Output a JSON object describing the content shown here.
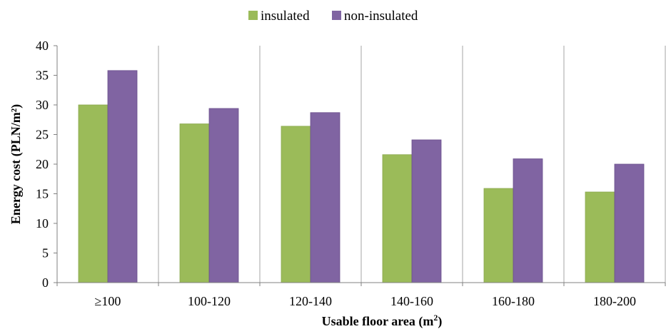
{
  "chart_data": {
    "type": "bar",
    "categories": [
      "≥100",
      "100-120",
      "120-140",
      "140-160",
      "160-180",
      "180-200"
    ],
    "series": [
      {
        "name": "insulated",
        "values": [
          30.0,
          26.8,
          26.4,
          21.6,
          15.9,
          15.3
        ]
      },
      {
        "name": "non-insulated",
        "values": [
          35.8,
          29.4,
          28.7,
          24.1,
          20.9,
          20.0
        ]
      }
    ],
    "series_colors": [
      "#9bbb59",
      "#8064a2"
    ],
    "xlabel_main": "Usable floor area (m",
    "xlabel_sup": "2",
    "xlabel_end": ")",
    "ylabel": "Energy cost (PLN/m²)",
    "ylim": [
      0,
      40
    ],
    "yticks": [
      0,
      5,
      10,
      15,
      20,
      25,
      30,
      35,
      40
    ],
    "grid": "vertical",
    "legend_position": "top-center"
  }
}
